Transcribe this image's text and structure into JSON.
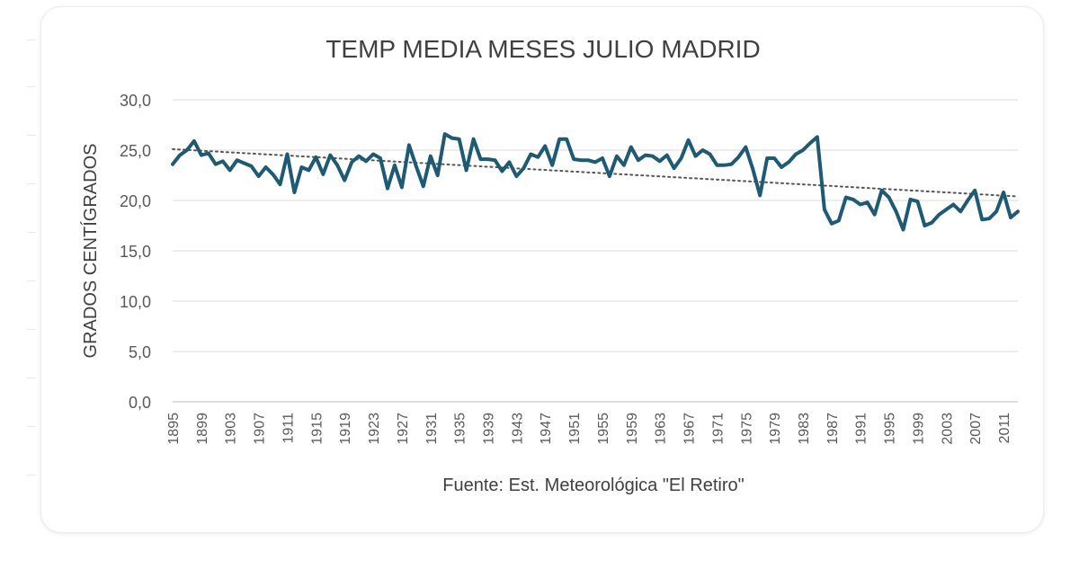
{
  "chart_data": {
    "type": "line",
    "title": "TEMP MEDIA MESES JULIO MADRID",
    "ylabel": "GRADOS CENTÍGRADOS",
    "xlabel": "Fuente: Est. Meteorológica \"El Retiro\"",
    "ylim": [
      0,
      30
    ],
    "yticks": [
      0,
      5,
      10,
      15,
      20,
      25,
      30
    ],
    "ytick_labels": [
      "0,0",
      "5,0",
      "10,0",
      "15,0",
      "20,0",
      "25,0",
      "30,0"
    ],
    "xlim": [
      1895,
      2013
    ],
    "xtick_labels": [
      "1895",
      "1899",
      "1903",
      "1907",
      "1911",
      "1915",
      "1919",
      "1923",
      "1927",
      "1931",
      "1935",
      "1939",
      "1943",
      "1947",
      "1951",
      "1955",
      "1959",
      "1963",
      "1967",
      "1971",
      "1975",
      "1979",
      "1983",
      "1987",
      "1991",
      "1995",
      "1999",
      "2003",
      "2007",
      "2011"
    ],
    "grid": true,
    "line_color": "#1e5a73",
    "trend_color": "#555555",
    "series": [
      {
        "x": [
          1895,
          1896,
          1897,
          1898,
          1899,
          1900,
          1901,
          1902,
          1903,
          1904,
          1905,
          1906,
          1907,
          1908,
          1909,
          1910,
          1911,
          1912,
          1913,
          1914,
          1915,
          1916,
          1917,
          1918,
          1919,
          1920,
          1921,
          1922,
          1923,
          1924,
          1925,
          1926,
          1927,
          1928,
          1929,
          1930,
          1931,
          1932,
          1933,
          1934,
          1935,
          1936,
          1937,
          1938,
          1939,
          1940,
          1941,
          1942,
          1943,
          1944,
          1945,
          1946,
          1947,
          1948,
          1949,
          1950,
          1951,
          1952,
          1953,
          1954,
          1955,
          1956,
          1957,
          1958,
          1959,
          1960,
          1961,
          1962,
          1963,
          1964,
          1965,
          1966,
          1967,
          1968,
          1969,
          1970,
          1971,
          1972,
          1973,
          1974,
          1975,
          1976,
          1977,
          1978,
          1979,
          1980,
          1981,
          1982,
          1983,
          1984,
          1985,
          1986,
          1987,
          1988,
          1989,
          1990,
          1991,
          1992,
          1993,
          1994,
          1995,
          1996,
          1997,
          1998,
          1999,
          2000,
          2001,
          2002,
          2003,
          2004,
          2005,
          2006,
          2007,
          2008,
          2009,
          2010,
          2011,
          2012,
          2013
        ],
        "values": [
          23.6,
          24.5,
          25.0,
          25.9,
          24.5,
          24.7,
          23.6,
          23.9,
          23.0,
          24.0,
          23.7,
          23.4,
          22.4,
          23.3,
          22.6,
          21.6,
          24.6,
          20.8,
          23.3,
          23.0,
          24.3,
          22.6,
          24.5,
          23.5,
          22.0,
          23.8,
          24.4,
          23.9,
          24.6,
          24.2,
          21.2,
          23.5,
          21.3,
          25.5,
          23.4,
          21.4,
          24.4,
          22.5,
          26.6,
          26.2,
          26.1,
          23.0,
          26.1,
          24.1,
          24.1,
          24.0,
          22.9,
          23.8,
          22.4,
          23.2,
          24.6,
          24.3,
          25.4,
          23.5,
          26.1,
          26.1,
          24.1,
          24.0,
          24.0,
          23.8,
          24.2,
          22.4,
          24.4,
          23.5,
          25.3,
          24.0,
          24.5,
          24.4,
          23.9,
          24.5,
          23.2,
          24.2,
          26.0,
          24.4,
          25.0,
          24.6,
          23.5,
          23.5,
          23.6,
          24.3,
          25.3,
          23.1,
          20.5,
          24.2,
          24.2,
          23.3,
          23.8,
          24.6,
          25.0,
          25.7,
          26.3,
          19.1,
          17.7,
          18.0,
          20.3,
          20.1,
          19.6,
          19.8,
          18.6,
          21.0,
          20.3,
          18.9,
          17.1,
          20.1,
          19.9,
          17.5,
          17.8,
          18.6,
          19.1,
          19.6,
          18.9,
          20.0,
          21.0,
          18.1,
          18.2,
          18.9,
          20.8,
          18.3,
          18.9
        ]
      }
    ],
    "trendline": {
      "type": "linear",
      "style": "dotted",
      "x": [
        1895,
        2013
      ],
      "values": [
        25.1,
        20.4
      ]
    }
  }
}
